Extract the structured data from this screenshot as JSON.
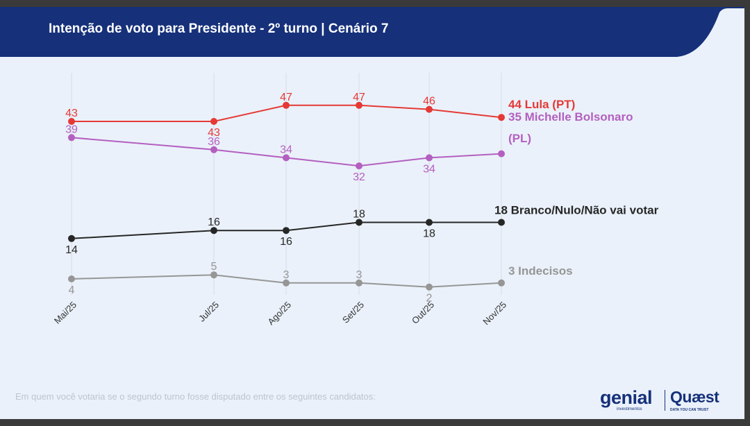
{
  "header": {
    "title": "Intenção de voto para Presidente - 2º turno | Cenário 7"
  },
  "colors": {
    "header_bg": "#16307a",
    "panel_bg": "#eaf1fa",
    "grid": "#d8dde6"
  },
  "chart_data": {
    "type": "line",
    "title": "Intenção de voto para Presidente - 2º turno | Cenário 7",
    "categories": [
      "Mai/25",
      "Jul/25",
      "Ago/25",
      "Set/25",
      "Out/25",
      "Nov/25"
    ],
    "ylim": [
      0,
      50
    ],
    "grid": "vertical",
    "series": [
      {
        "name": "Lula (PT)",
        "label_lines": [
          "44 Lula (PT)"
        ],
        "color": "#e53935",
        "values": [
          43,
          43,
          47,
          47,
          46,
          44
        ],
        "label_pos": [
          "above",
          "below",
          "above",
          "above",
          "above",
          "none"
        ]
      },
      {
        "name": "Michelle Bolsonaro (PL)",
        "label_lines": [
          "35 Michelle Bolsonaro",
          "(PL)"
        ],
        "color": "#b45fc0",
        "values": [
          39,
          36,
          34,
          32,
          34,
          35
        ],
        "label_pos": [
          "above",
          "above",
          "above",
          "below",
          "below",
          "none"
        ]
      },
      {
        "name": "Branco/Nulo/Não vai votar",
        "label_lines": [
          "18 Branco/Nulo/Não vai votar"
        ],
        "color": "#262626",
        "values": [
          14,
          16,
          16,
          18,
          18,
          18
        ],
        "label_pos": [
          "below",
          "above",
          "below",
          "above",
          "below",
          "none"
        ]
      },
      {
        "name": "Indecisos",
        "label_lines": [
          "3 Indecisos"
        ],
        "color": "#969696",
        "values": [
          4,
          5,
          3,
          3,
          2,
          3
        ],
        "label_pos": [
          "below",
          "above",
          "above",
          "above",
          "below",
          "none"
        ]
      }
    ]
  },
  "footer": {
    "note": "Em quem você votaria se o segundo turno fosse disputado entre os seguintes candidatos:",
    "logo_genial": "genial",
    "logo_genial_sub": "investimentos",
    "logo_quaest": "Quæst",
    "logo_quaest_sub": "DATA YOU CAN TRUST"
  }
}
